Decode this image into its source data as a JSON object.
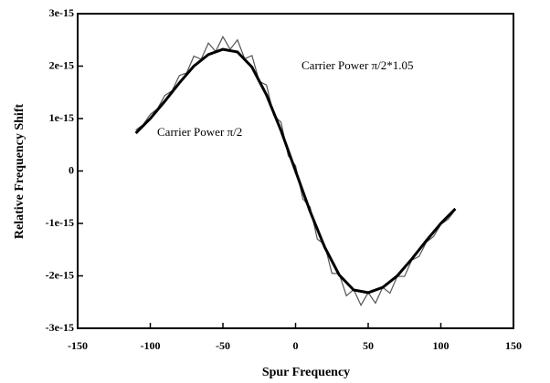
{
  "chart_data": {
    "type": "line",
    "xlabel": "Spur Frequency",
    "ylabel": "Relative Frequency Shift",
    "xlim": [
      -150,
      150
    ],
    "xticks": [
      -150,
      -100,
      -50,
      0,
      50,
      100,
      150
    ],
    "ylim": [
      -3e-15,
      3e-15
    ],
    "yticks": [
      -3e-15,
      -2e-15,
      -1e-15,
      0,
      1e-15,
      2e-15,
      3e-15
    ],
    "series": [
      {
        "name": "Carrier Power π/2*1.05",
        "color": "#555555",
        "x": [
          -110,
          -105,
          -100,
          -95,
          -90,
          -85,
          -80,
          -75,
          -70,
          -65,
          -60,
          -55,
          -50,
          -45,
          -40,
          -35,
          -30,
          -25,
          -20,
          -15,
          -10,
          -5,
          0,
          5,
          10,
          15,
          20,
          25,
          30,
          35,
          40,
          45,
          50,
          55,
          60,
          65,
          70,
          75,
          80,
          85,
          90,
          95,
          100,
          105,
          110
        ],
        "values": [
          7.8e-16,
          8.8e-16,
          1.08e-15,
          1.19e-15,
          1.44e-15,
          1.53e-15,
          1.82e-15,
          1.87e-15,
          2.19e-15,
          2.13e-15,
          2.44e-15,
          2.28e-15,
          2.56e-15,
          2.32e-15,
          2.5e-15,
          2.14e-15,
          2.2e-15,
          1.71e-15,
          1.64e-15,
          1.06e-15,
          9.3e-16,
          2.9e-16,
          1e-16,
          -5.3e-16,
          -6.9e-16,
          -1.3e-15,
          -1.4e-15,
          -1.95e-15,
          -1.96e-15,
          -2.38e-15,
          -2.26e-15,
          -2.56e-15,
          -2.32e-15,
          -2.52e-15,
          -2.22e-15,
          -2.33e-15,
          -2.01e-15,
          -2.01e-15,
          -1.7e-15,
          -1.63e-15,
          -1.36e-15,
          -1.25e-15,
          -1.02e-15,
          -9.2e-16,
          -7.4e-16
        ]
      },
      {
        "name": "Carrier Power π/2",
        "color": "#000000",
        "x": [
          -110,
          -100,
          -90,
          -80,
          -70,
          -60,
          -50,
          -40,
          -30,
          -20,
          -10,
          0,
          10,
          20,
          30,
          40,
          50,
          60,
          70,
          80,
          90,
          100,
          110
        ],
        "values": [
          7.2e-16,
          1e-15,
          1.33e-15,
          1.68e-15,
          2e-15,
          2.22e-15,
          2.32e-15,
          2.27e-15,
          1.98e-15,
          1.45e-15,
          7.7e-16,
          0,
          -7.7e-16,
          -1.45e-15,
          -1.98e-15,
          -2.27e-15,
          -2.32e-15,
          -2.22e-15,
          -2e-15,
          -1.68e-15,
          -1.33e-15,
          -1e-15,
          -7.2e-16
        ]
      }
    ]
  }
}
